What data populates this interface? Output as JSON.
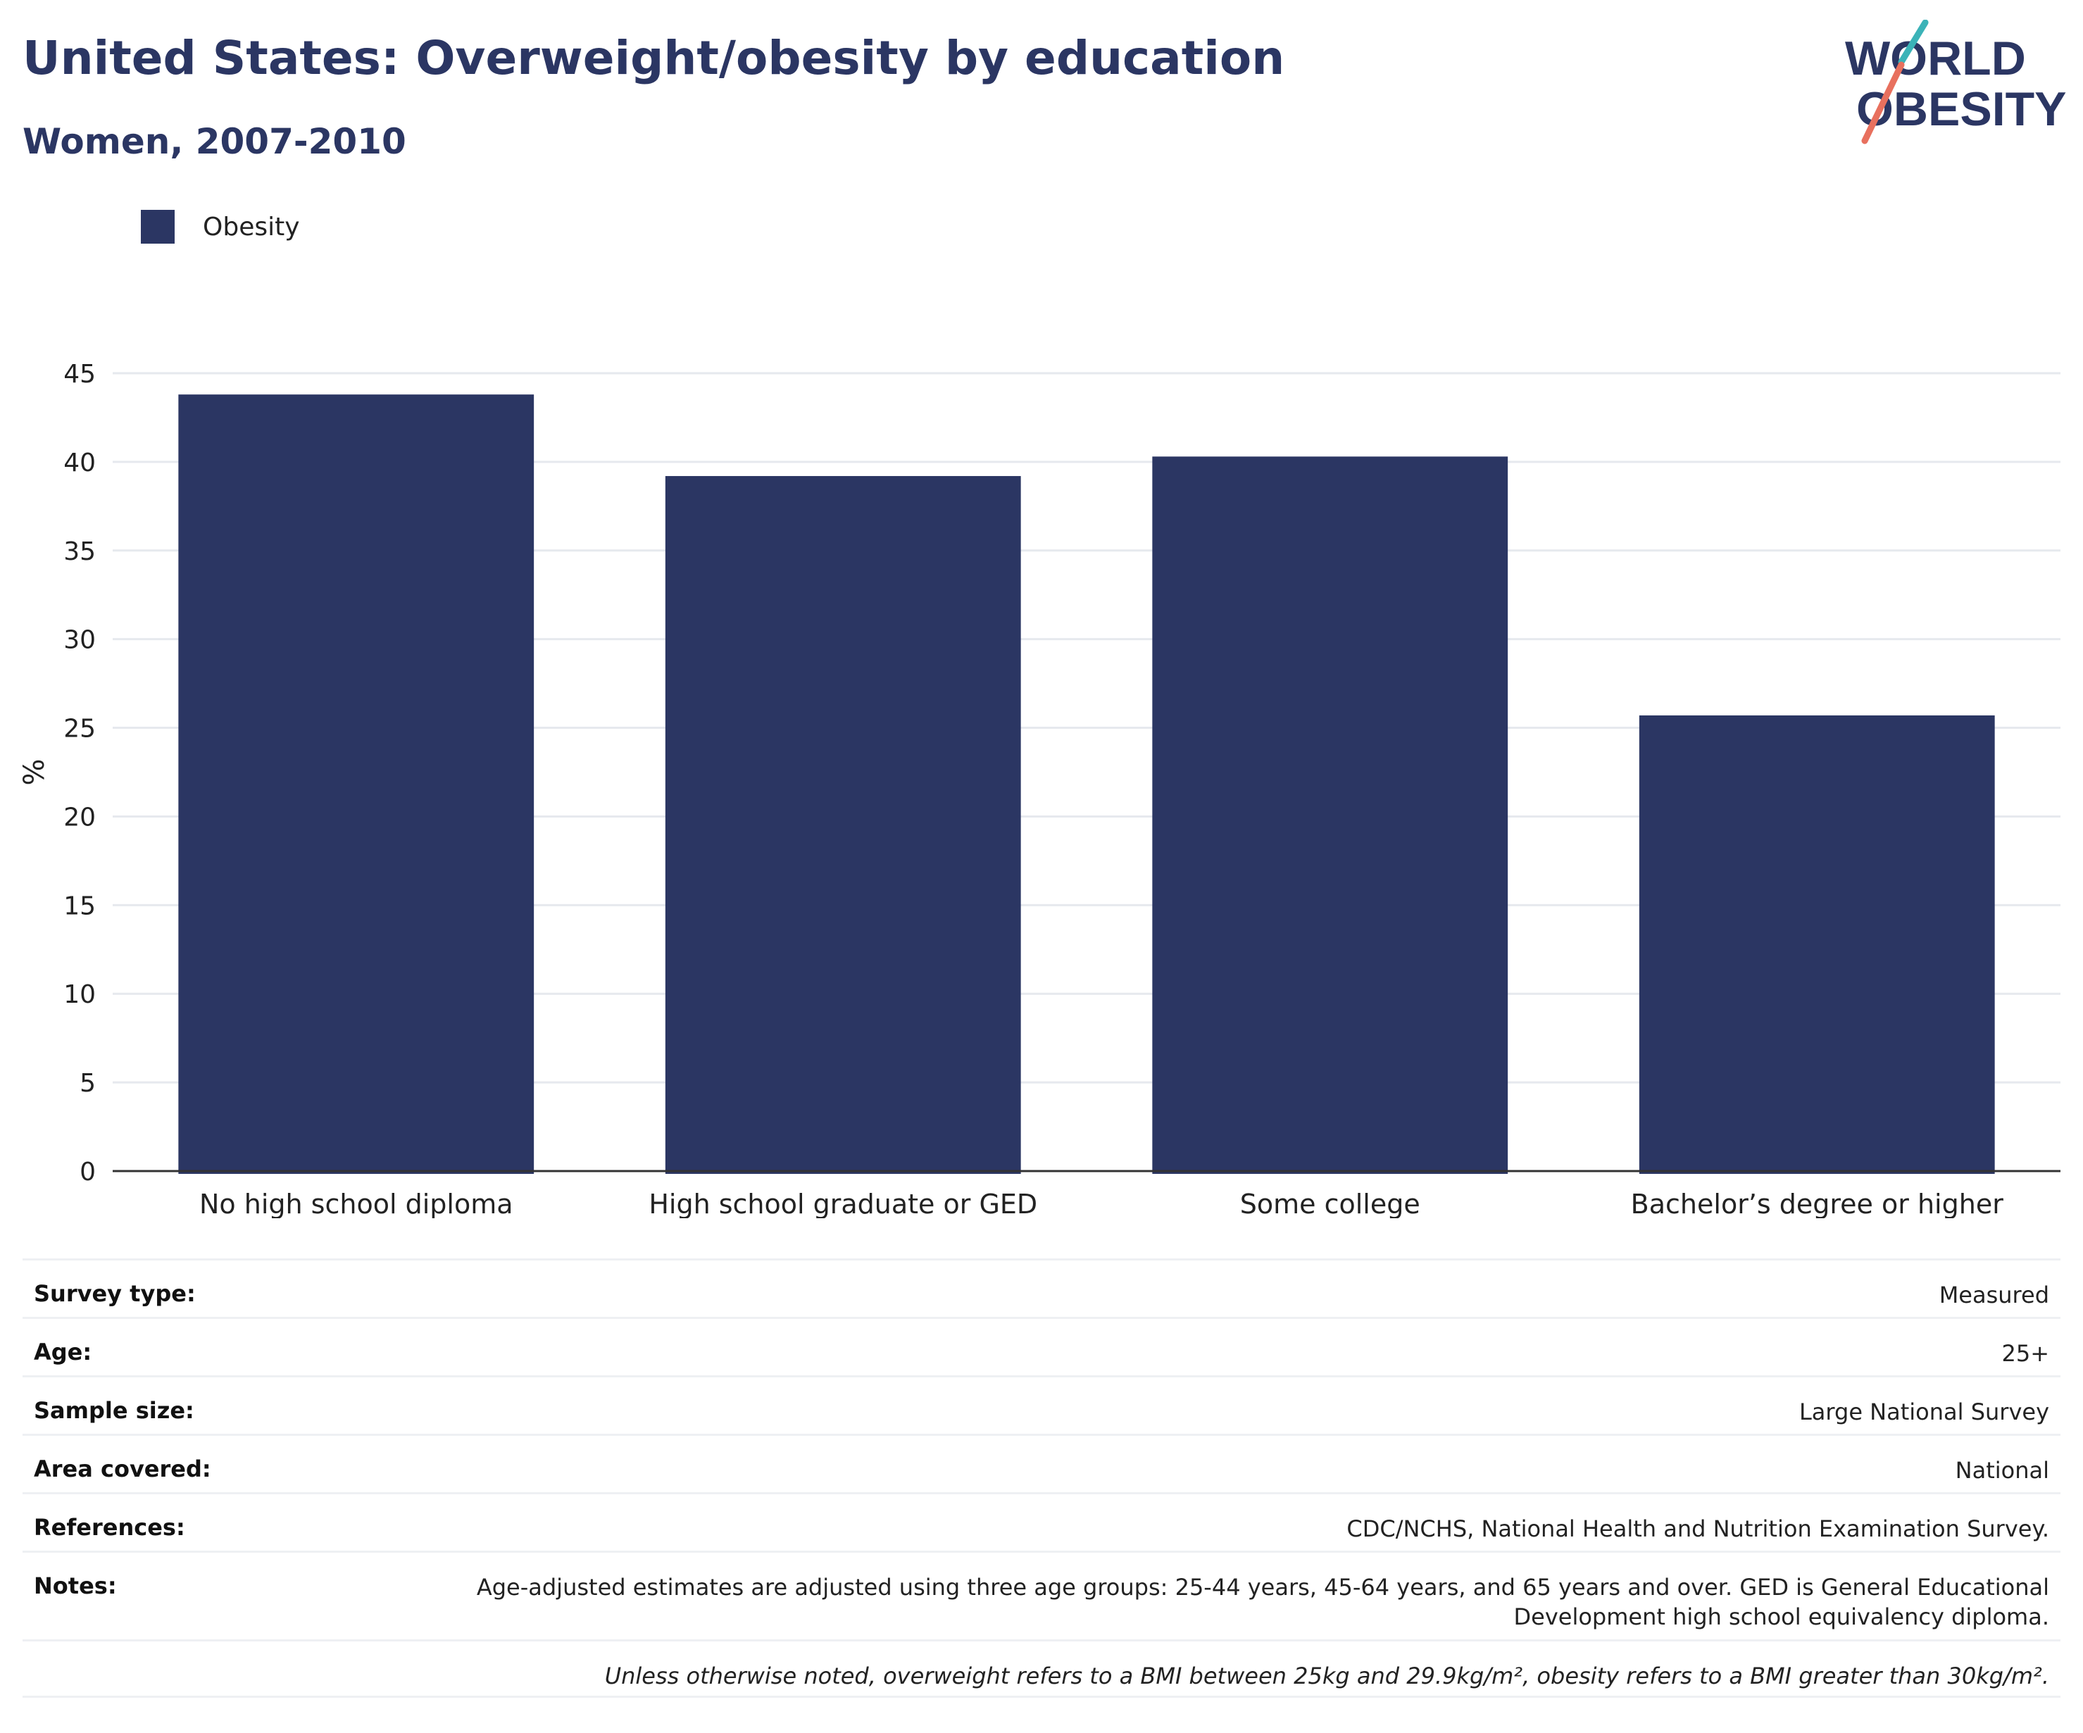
{
  "header": {
    "title": "United States: Overweight/obesity by education",
    "subtitle": "Women, 2007-2010"
  },
  "logo": {
    "line1": "WORLD",
    "line2": "OBESITY"
  },
  "colors": {
    "bar": "#2b3663",
    "title": "#2b3663",
    "grid": "#e6e9ee",
    "logo_teal": "#3bb3b8",
    "logo_coral": "#e8705e"
  },
  "legend": {
    "items": [
      {
        "label": "Obesity",
        "color": "#2b3663"
      }
    ]
  },
  "chart_data": {
    "type": "bar",
    "categories": [
      "No high school diploma",
      "High school graduate or GED",
      "Some college",
      "Bachelor’s degree or higher"
    ],
    "series": [
      {
        "name": "Obesity",
        "values": [
          43.8,
          39.2,
          40.3,
          25.7
        ]
      }
    ],
    "ylabel": "%",
    "xlabel": "",
    "ylim": [
      0,
      45
    ],
    "yticks": [
      0,
      5,
      10,
      15,
      20,
      25,
      30,
      35,
      40,
      45
    ],
    "grid": true,
    "legend_position": "top-left"
  },
  "info": {
    "survey_type": {
      "label": "Survey type:",
      "value": "Measured"
    },
    "age": {
      "label": "Age:",
      "value": "25+"
    },
    "sample_size": {
      "label": "Sample size:",
      "value": "Large National Survey"
    },
    "area_covered": {
      "label": "Area covered:",
      "value": "National"
    },
    "references": {
      "label": "References:",
      "value": "CDC/NCHS, National Health and Nutrition Examination Survey."
    },
    "notes": {
      "label": "Notes:",
      "value": "Age-adjusted estimates are adjusted using three age groups: 25-44 years, 45-64 years, and 65 years and over. GED is General Educational Development high school equivalency diploma."
    },
    "footnote": "Unless otherwise noted, overweight refers to a BMI between 25kg and 29.9kg/m², obesity refers to a BMI greater than 30kg/m²."
  }
}
